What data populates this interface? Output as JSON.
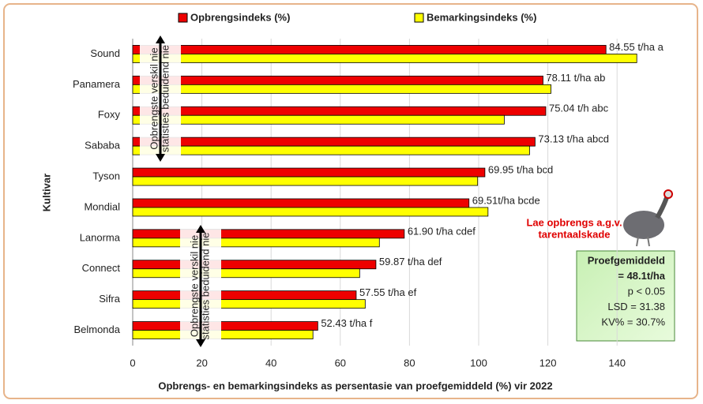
{
  "chart_data": {
    "type": "hbar",
    "categories": [
      "Sound",
      "Panamera",
      "Foxy",
      "Sababa",
      "Tyson",
      "Mondial",
      "Lanorma",
      "Connect",
      "Sifra",
      "Belmonda"
    ],
    "series": [
      {
        "name": "Opbrengsindeks (%)",
        "color": "#ee0000",
        "values": [
          136.8,
          118.6,
          119.4,
          116.3,
          101.8,
          97.2,
          78.5,
          70.3,
          64.6,
          53.5
        ]
      },
      {
        "name": "Bemarkingsindeks (%)",
        "color": "#ffff00",
        "values": [
          145.7,
          120.9,
          107.4,
          114.7,
          99.7,
          102.7,
          71.3,
          65.6,
          67.2,
          52.1
        ]
      }
    ],
    "bar_labels": [
      "84.55 t/ha a",
      "78.11 t/ha ab",
      "75.04 t/h abc",
      "73.13 t/ha abcd",
      "69.95 t/ha bcd",
      "69.51t/ha bcde",
      "61.90 t/ha cdef",
      "59.87 t/ha def",
      "57.55 t/ha ef",
      "52.43 t/ha f"
    ],
    "xlim": [
      0,
      150
    ],
    "xticks": [
      0,
      20,
      40,
      60,
      80,
      100,
      120,
      140
    ],
    "grid": true,
    "xlabel": "Opbrengs- en bemarkingsindeks as persentasie  van proefgemiddeld (%) vir 2022",
    "ylabel": "Kultivar",
    "notes": [
      {
        "lines": [
          "Opbrengste verskil nie",
          "statisties beduidend nie"
        ]
      },
      {
        "lines": [
          "Opbrengste verskil nie",
          "statisties beduidend nie"
        ]
      }
    ],
    "damage_note": [
      "Lae opbrengs a.g.v.",
      "tarentaalskade"
    ],
    "stats_box": [
      "Proefgemiddeld",
      "= 48.1t/ha",
      "p <  0.05",
      "LSD = 31.38",
      "KV% =  30.7%"
    ]
  }
}
